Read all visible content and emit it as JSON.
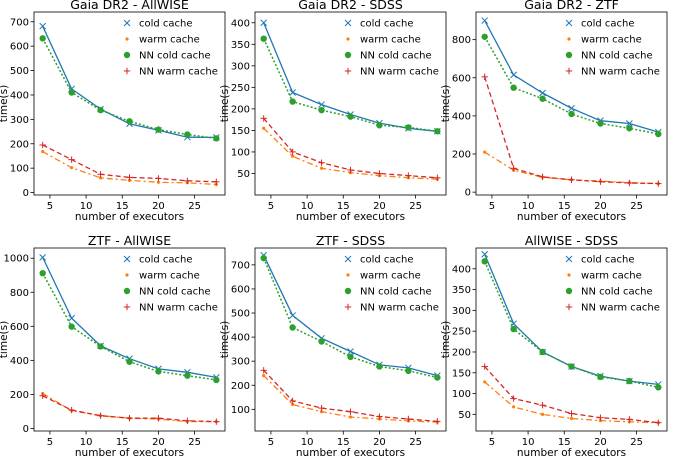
{
  "colors": {
    "cold": "#1f77b4",
    "warm": "#ff7f0e",
    "nn_cold": "#2ca02c",
    "nn_warm": "#d62728"
  },
  "chart_data": [
    {
      "type": "line",
      "title": "Gaia DR2 - AllWISE",
      "xlabel": "number of executors",
      "ylabel": "time(s)",
      "x": [
        4,
        8,
        12,
        16,
        20,
        24,
        28
      ],
      "xticks": [
        5,
        10,
        15,
        20,
        25
      ],
      "ylim": [
        -10,
        740
      ],
      "yticks": [
        0,
        100,
        200,
        300,
        400,
        500,
        600,
        700
      ],
      "legend": "top-right",
      "grid": false,
      "series": [
        {
          "name": "cold cache",
          "values": [
            682,
            425,
            342,
            282,
            255,
            227,
            226
          ]
        },
        {
          "name": "warm cache",
          "values": [
            168,
            102,
            60,
            50,
            42,
            40,
            33
          ]
        },
        {
          "name": "NN cold cache",
          "values": [
            632,
            410,
            338,
            292,
            258,
            238,
            222
          ]
        },
        {
          "name": "NN warm cache",
          "values": [
            195,
            135,
            75,
            62,
            58,
            48,
            44
          ]
        }
      ]
    },
    {
      "type": "line",
      "title": "Gaia DR2 - SDSS",
      "xlabel": "number of executors",
      "ylabel": "time(s)",
      "x": [
        4,
        8,
        12,
        16,
        20,
        24,
        28
      ],
      "xticks": [
        5,
        10,
        15,
        20,
        25
      ],
      "ylim": [
        0,
        425
      ],
      "yticks": [
        50,
        100,
        150,
        200,
        250,
        300,
        350,
        400
      ],
      "legend": "top-right",
      "grid": false,
      "series": [
        {
          "name": "cold cache",
          "values": [
            400,
            238,
            210,
            187,
            167,
            155,
            148
          ]
        },
        {
          "name": "warm cache",
          "values": [
            155,
            90,
            62,
            52,
            45,
            40,
            37
          ]
        },
        {
          "name": "NN cold cache",
          "values": [
            363,
            217,
            197,
            182,
            162,
            157,
            148
          ]
        },
        {
          "name": "NN warm cache",
          "values": [
            178,
            100,
            75,
            58,
            50,
            45,
            40
          ]
        }
      ]
    },
    {
      "type": "line",
      "title": "Gaia DR2 - ZTF",
      "xlabel": "number of executors",
      "ylabel": "time(s)",
      "x": [
        4,
        8,
        12,
        16,
        20,
        24,
        28
      ],
      "xticks": [
        5,
        10,
        15,
        20,
        25
      ],
      "ylim": [
        -15,
        945
      ],
      "yticks": [
        0,
        200,
        400,
        600,
        800
      ],
      "legend": "top-right",
      "grid": false,
      "series": [
        {
          "name": "cold cache",
          "values": [
            900,
            615,
            520,
            440,
            375,
            360,
            315
          ]
        },
        {
          "name": "warm cache",
          "values": [
            210,
            115,
            78,
            65,
            58,
            50,
            45
          ]
        },
        {
          "name": "NN cold cache",
          "values": [
            815,
            548,
            490,
            410,
            360,
            335,
            305
          ]
        },
        {
          "name": "NN warm cache",
          "values": [
            605,
            125,
            80,
            65,
            55,
            48,
            45
          ]
        }
      ]
    },
    {
      "type": "line",
      "title": "ZTF - AllWISE",
      "xlabel": "number of executors",
      "ylabel": "time(s)",
      "x": [
        4,
        8,
        12,
        16,
        20,
        24,
        28
      ],
      "xticks": [
        5,
        10,
        15,
        20,
        25
      ],
      "ylim": [
        -15,
        1060
      ],
      "yticks": [
        0,
        200,
        400,
        600,
        800,
        1000
      ],
      "legend": "top-right",
      "grid": false,
      "series": [
        {
          "name": "cold cache",
          "values": [
            1005,
            648,
            485,
            410,
            350,
            330,
            300
          ]
        },
        {
          "name": "warm cache",
          "values": [
            205,
            105,
            75,
            60,
            55,
            40,
            40
          ]
        },
        {
          "name": "NN cold cache",
          "values": [
            912,
            598,
            482,
            392,
            335,
            310,
            285
          ]
        },
        {
          "name": "NN warm cache",
          "values": [
            192,
            108,
            75,
            60,
            60,
            45,
            40
          ]
        }
      ]
    },
    {
      "type": "line",
      "title": "ZTF - SDSS",
      "xlabel": "number of executors",
      "ylabel": "time(s)",
      "x": [
        4,
        8,
        12,
        16,
        20,
        24,
        28
      ],
      "xticks": [
        5,
        10,
        15,
        20,
        25
      ],
      "ylim": [
        10,
        770
      ],
      "yticks": [
        100,
        200,
        300,
        400,
        500,
        600,
        700
      ],
      "legend": "top-right",
      "grid": false,
      "series": [
        {
          "name": "cold cache",
          "values": [
            740,
            490,
            395,
            340,
            285,
            272,
            240
          ]
        },
        {
          "name": "warm cache",
          "values": [
            240,
            120,
            90,
            68,
            60,
            52,
            47
          ]
        },
        {
          "name": "NN cold cache",
          "values": [
            728,
            440,
            382,
            318,
            278,
            260,
            232
          ]
        },
        {
          "name": "NN warm cache",
          "values": [
            262,
            135,
            105,
            90,
            70,
            60,
            50
          ]
        }
      ]
    },
    {
      "type": "line",
      "title": "AllWISE - SDSS",
      "xlabel": "number of executors",
      "ylabel": "time(s)",
      "x": [
        4,
        8,
        12,
        16,
        20,
        24,
        28
      ],
      "xticks": [
        5,
        10,
        15,
        20,
        25
      ],
      "ylim": [
        10,
        450
      ],
      "yticks": [
        50,
        100,
        150,
        200,
        250,
        300,
        350,
        400
      ],
      "legend": "top-right",
      "grid": false,
      "series": [
        {
          "name": "cold cache",
          "values": [
            435,
            268,
            200,
            165,
            142,
            130,
            122
          ]
        },
        {
          "name": "warm cache",
          "values": [
            128,
            68,
            50,
            40,
            35,
            32,
            30
          ]
        },
        {
          "name": "NN cold cache",
          "values": [
            418,
            255,
            200,
            165,
            140,
            130,
            115
          ]
        },
        {
          "name": "NN warm cache",
          "values": [
            165,
            88,
            72,
            52,
            42,
            38,
            30
          ]
        }
      ]
    }
  ]
}
